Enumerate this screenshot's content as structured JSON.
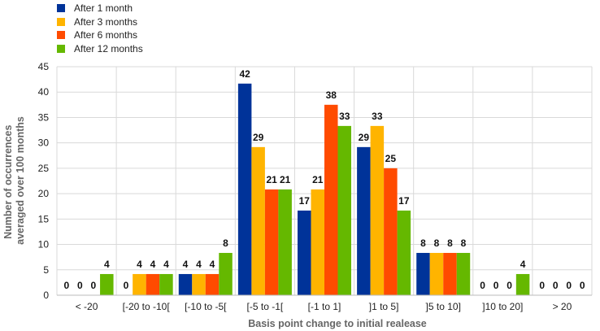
{
  "chart_data": {
    "type": "bar",
    "title": "",
    "xlabel": "Basis point change to initial realease",
    "ylabel": "Number of occurrences averaged over 100 months",
    "ylabel_lines": [
      "Number of occurrences",
      "averaged over 100 months"
    ],
    "ylim": [
      0,
      45
    ],
    "yticks": [
      0,
      5,
      10,
      15,
      20,
      25,
      30,
      35,
      40,
      45
    ],
    "grid": true,
    "legend_position": "top-left",
    "categories": [
      "< -20",
      "[-20 to -10[",
      "[-10 to -5[",
      "[-5 to -1[",
      "[-1 to 1]",
      "]1 to 5]",
      "]5 to 10]",
      "]10 to 20]",
      "> 20"
    ],
    "series": [
      {
        "name": "After 1 month",
        "color": "#003399",
        "values": [
          0,
          0,
          4.17,
          41.67,
          16.67,
          29.17,
          8.33,
          0,
          0
        ]
      },
      {
        "name": "After 3 months",
        "color": "#FFB400",
        "values": [
          0,
          4.17,
          4.17,
          29.17,
          20.83,
          33.33,
          8.33,
          0,
          0
        ]
      },
      {
        "name": "After 6 months",
        "color": "#FF4B00",
        "values": [
          0,
          4.17,
          4.17,
          20.83,
          37.5,
          25,
          8.33,
          0,
          0
        ]
      },
      {
        "name": "After 12 months",
        "color": "#65B800",
        "values": [
          4.17,
          4.17,
          8.33,
          20.83,
          33.33,
          16.67,
          8.33,
          4.17,
          0
        ]
      }
    ],
    "data_labels": [
      [
        "0",
        "0",
        "4",
        "42",
        "17",
        "29",
        "8",
        "0",
        "0"
      ],
      [
        "0",
        "4",
        "4",
        "29",
        "21",
        "33",
        "8",
        "0",
        "0"
      ],
      [
        "0",
        "4",
        "4",
        "21",
        "38",
        "25",
        "8",
        "0",
        "0"
      ],
      [
        "4",
        "4",
        "8",
        "21",
        "33",
        "17",
        "8",
        "4",
        "0"
      ]
    ]
  }
}
